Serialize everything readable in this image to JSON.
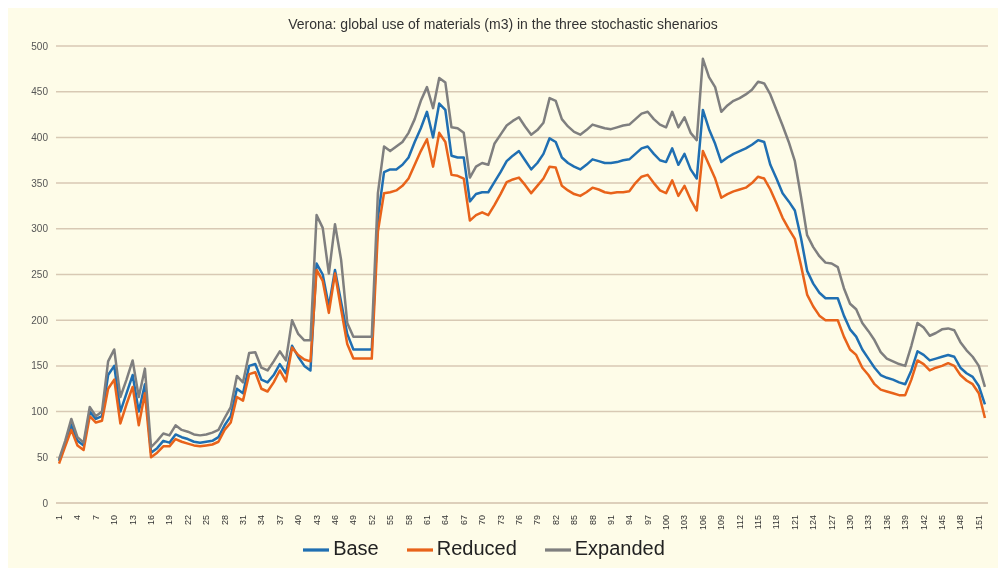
{
  "chart_data": {
    "type": "line",
    "title": "Verona: global use of materials (m3) in the three stochastic shenarios",
    "categories": [
      "1",
      null,
      null,
      "4",
      null,
      null,
      "7",
      null,
      null,
      "10",
      null,
      null,
      "13",
      null,
      null,
      "16",
      null,
      null,
      "19",
      null,
      null,
      "22",
      null,
      null,
      "25",
      null,
      null,
      "28",
      null,
      null,
      "31",
      null,
      null,
      "34",
      null,
      null,
      "37",
      null,
      null,
      "40",
      null,
      null,
      "43",
      null,
      null,
      "46",
      null,
      null,
      "49",
      null,
      null,
      "52",
      null,
      null,
      "55",
      null,
      null,
      "58",
      null,
      null,
      "61",
      null,
      null,
      "64",
      null,
      null,
      "67",
      null,
      null,
      "70",
      null,
      null,
      "73",
      null,
      null,
      "76",
      null,
      null,
      "79",
      null,
      null,
      "82",
      null,
      null,
      "85",
      null,
      null,
      "88",
      null,
      null,
      "91",
      null,
      null,
      "94",
      null,
      null,
      "97",
      null,
      null,
      "100",
      null,
      null,
      "103",
      null,
      null,
      "106",
      null,
      null,
      "109",
      null,
      null,
      "112",
      null,
      null,
      "115",
      null,
      null,
      "118",
      null,
      null,
      "121",
      null,
      null,
      "124",
      null,
      null,
      "127",
      null,
      null,
      "130",
      null,
      null,
      "133",
      null,
      null,
      "136",
      null,
      null,
      "139",
      null,
      null,
      "142",
      null,
      null,
      "145",
      null,
      null,
      "148",
      null,
      null,
      "151",
      null
    ],
    "series": [
      {
        "name": "Base",
        "color": "#1f6fb2",
        "values": [
          46,
          65,
          85,
          68,
          63,
          100,
          92,
          95,
          140,
          150,
          100,
          120,
          140,
          100,
          130,
          55,
          60,
          68,
          66,
          75,
          72,
          70,
          67,
          66,
          67,
          68,
          72,
          85,
          95,
          125,
          120,
          150,
          152,
          135,
          132,
          140,
          152,
          142,
          172,
          160,
          150,
          145,
          262,
          250,
          215,
          255,
          220,
          185,
          168,
          168,
          168,
          168,
          312,
          362,
          365,
          365,
          370,
          378,
          395,
          410,
          428,
          400,
          437,
          430,
          380,
          378,
          378,
          330,
          338,
          340,
          340,
          351,
          362,
          374,
          380,
          385,
          375,
          365,
          372,
          382,
          399,
          395,
          378,
          372,
          368,
          365,
          370,
          376,
          374,
          372,
          372,
          373,
          375,
          376,
          382,
          388,
          390,
          382,
          375,
          373,
          388,
          370,
          382,
          365,
          355,
          430,
          409,
          393,
          373,
          378,
          382,
          385,
          388,
          392,
          397,
          395,
          370,
          355,
          339,
          330,
          320,
          290,
          254,
          240,
          230,
          224,
          224,
          224,
          205,
          190,
          182,
          168,
          158,
          148,
          140,
          137,
          135,
          132,
          130,
          145,
          166,
          162,
          156,
          158,
          160,
          162,
          160,
          148,
          142,
          138,
          128,
          108
        ]
      },
      {
        "name": "Reduced",
        "color": "#e8631a",
        "values": [
          43,
          62,
          80,
          63,
          58,
          95,
          88,
          90,
          125,
          135,
          87,
          108,
          127,
          85,
          120,
          50,
          55,
          62,
          62,
          70,
          67,
          65,
          63,
          62,
          63,
          64,
          67,
          80,
          88,
          116,
          112,
          141,
          143,
          125,
          122,
          132,
          145,
          133,
          170,
          162,
          157,
          155,
          255,
          243,
          208,
          251,
          212,
          174,
          158,
          158,
          158,
          158,
          297,
          339,
          340,
          342,
          347,
          355,
          370,
          385,
          398,
          368,
          405,
          395,
          359,
          358,
          355,
          309,
          315,
          318,
          315,
          326,
          338,
          351,
          354,
          356,
          348,
          339,
          347,
          355,
          368,
          367,
          347,
          342,
          338,
          336,
          340,
          345,
          343,
          340,
          339,
          340,
          340,
          341,
          350,
          357,
          359,
          350,
          342,
          339,
          353,
          336,
          347,
          332,
          320,
          385,
          370,
          355,
          334,
          338,
          341,
          343,
          345,
          350,
          357,
          355,
          343,
          328,
          312,
          300,
          289,
          260,
          228,
          215,
          205,
          200,
          200,
          200,
          182,
          168,
          162,
          148,
          140,
          130,
          124,
          122,
          120,
          118,
          118,
          135,
          156,
          152,
          145,
          148,
          150,
          153,
          150,
          140,
          134,
          130,
          120,
          93
        ]
      },
      {
        "name": "Expanded",
        "color": "#7f7f7f",
        "values": [
          48,
          68,
          92,
          72,
          66,
          105,
          95,
          100,
          155,
          168,
          116,
          135,
          156,
          116,
          147,
          61,
          68,
          76,
          74,
          85,
          80,
          78,
          75,
          74,
          75,
          77,
          80,
          93,
          105,
          139,
          132,
          164,
          165,
          148,
          145,
          155,
          166,
          156,
          200,
          185,
          178,
          178,
          315,
          301,
          251,
          305,
          266,
          197,
          182,
          182,
          182,
          182,
          339,
          390,
          385,
          390,
          395,
          405,
          420,
          440,
          455,
          432,
          465,
          460,
          411,
          410,
          405,
          356,
          368,
          372,
          370,
          393,
          403,
          413,
          418,
          422,
          412,
          403,
          408,
          416,
          443,
          440,
          420,
          412,
          406,
          403,
          408,
          414,
          412,
          410,
          409,
          411,
          413,
          414,
          420,
          426,
          428,
          420,
          414,
          411,
          428,
          411,
          422,
          405,
          397,
          486,
          466,
          455,
          428,
          435,
          440,
          443,
          447,
          452,
          461,
          459,
          447,
          430,
          413,
          395,
          374,
          335,
          293,
          280,
          270,
          263,
          262,
          258,
          235,
          218,
          212,
          197,
          188,
          178,
          165,
          158,
          155,
          152,
          150,
          172,
          197,
          192,
          183,
          186,
          190,
          191,
          189,
          176,
          167,
          160,
          150,
          127
        ]
      }
    ],
    "ylim": [
      0,
      500
    ],
    "yticks": [
      0,
      50,
      100,
      150,
      200,
      250,
      300,
      350,
      400,
      450,
      500
    ],
    "grid": "y",
    "legend": "bottom",
    "marker": "none",
    "line_style": "solid"
  }
}
